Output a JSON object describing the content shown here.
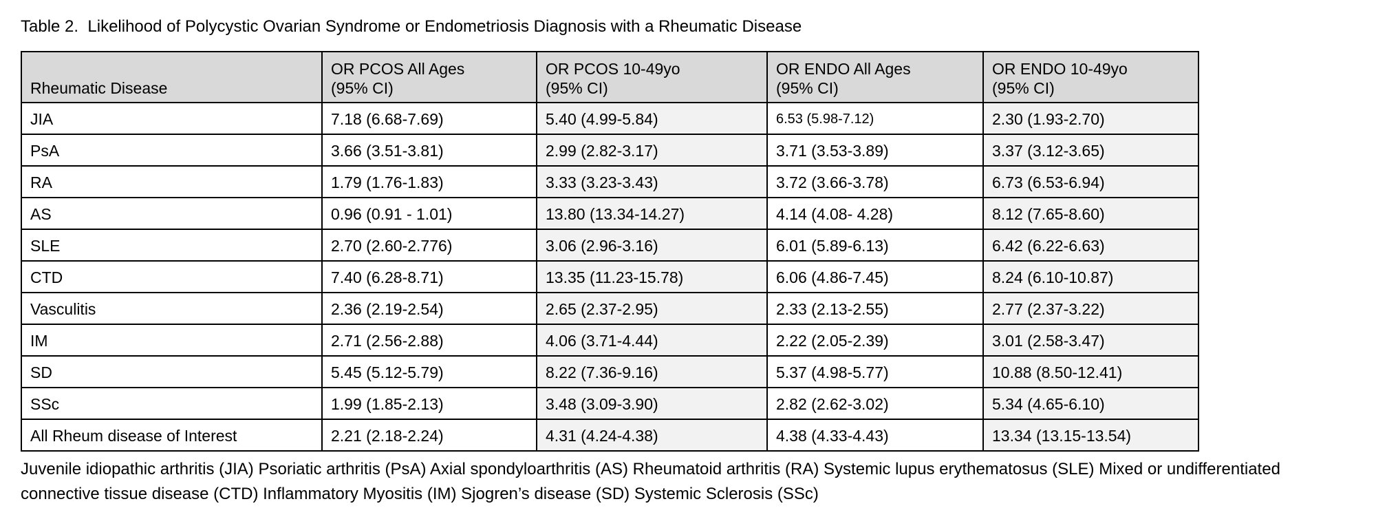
{
  "document": {
    "title": "Table 2.  Likelihood of Polycystic Ovarian Syndrome or Endometriosis Diagnosis with a Rheumatic Disease",
    "footnote": "Juvenile idiopathic arthritis (JIA) Psoriatic arthritis (PsA) Axial spondyloarthritis (AS) Rheumatoid arthritis (RA) Systemic lupus erythematosus (SLE) Mixed or undifferentiated connective tissue disease (CTD) Inflammatory Myositis (IM) Sjogren’s disease (SD) Systemic Sclerosis (SSc)"
  },
  "colors": {
    "header_bg": "#d9d9d9",
    "band_bg": "#f2f2f2",
    "border": "#000000"
  },
  "table": {
    "headers": [
      "Rheumatic Disease",
      "OR PCOS All Ages\n(95% CI)",
      "OR PCOS 10-49yo\n(95% CI)",
      "OR ENDO All Ages\n(95% CI)",
      "OR ENDO 10-49yo\n(95% CI)"
    ],
    "rows": [
      [
        "JIA",
        "7.18 (6.68-7.69)",
        "5.40 (4.99-5.84)",
        "6.53 (5.98-7.12)",
        "2.30 (1.93-2.70)"
      ],
      [
        "PsA",
        "3.66 (3.51-3.81)",
        "2.99 (2.82-3.17)",
        "3.71 (3.53-3.89)",
        "3.37 (3.12-3.65)"
      ],
      [
        "RA",
        "1.79 (1.76-1.83)",
        "3.33 (3.23-3.43)",
        "3.72 (3.66-3.78)",
        "6.73 (6.53-6.94)"
      ],
      [
        "AS",
        "0.96 (0.91 - 1.01)",
        "13.80 (13.34-14.27)",
        "4.14 (4.08- 4.28)",
        "8.12 (7.65-8.60)"
      ],
      [
        "SLE",
        "2.70 (2.60-2.776)",
        "3.06 (2.96-3.16)",
        "6.01 (5.89-6.13)",
        "6.42 (6.22-6.63)"
      ],
      [
        "CTD",
        "7.40 (6.28-8.71)",
        "13.35 (11.23-15.78)",
        "6.06 (4.86-7.45)",
        "8.24 (6.10-10.87)"
      ],
      [
        "Vasculitis",
        "2.36 (2.19-2.54)",
        "2.65 (2.37-2.95)",
        "2.33 (2.13-2.55)",
        "2.77 (2.37-3.22)"
      ],
      [
        "IM",
        "2.71 (2.56-2.88)",
        "4.06 (3.71-4.44)",
        "2.22 (2.05-2.39)",
        "3.01 (2.58-3.47)"
      ],
      [
        "SD",
        "5.45 (5.12-5.79)",
        "8.22 (7.36-9.16)",
        "5.37 (4.98-5.77)",
        "10.88 (8.50-12.41)"
      ],
      [
        "SSc",
        "1.99 (1.85-2.13)",
        "3.48 (3.09-3.90)",
        "2.82 (2.62-3.02)",
        "5.34 (4.65-6.10)"
      ],
      [
        "All Rheum disease of Interest",
        "2.21 (2.18-2.24)",
        "4.31 (4.24-4.38)",
        "4.38 (4.33-4.43)",
        "13.34 (13.15-13.54)"
      ]
    ]
  }
}
